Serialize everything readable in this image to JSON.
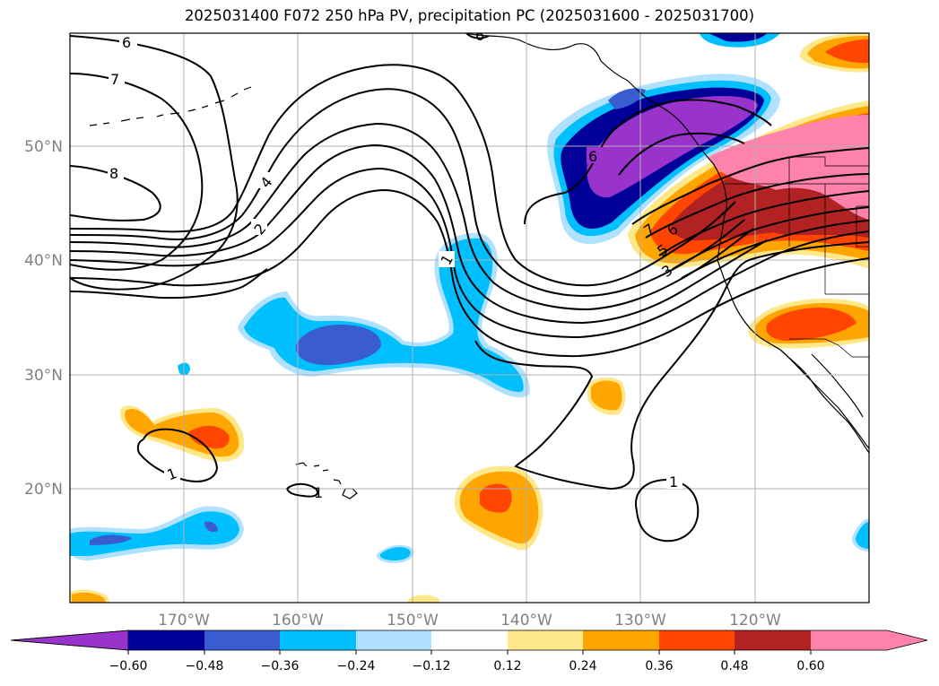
{
  "title": "2025031400 F072 250 hPa PV, precipitation PC (2025031600 - 2025031700)",
  "map": {
    "lon_range": [
      -180,
      -110
    ],
    "lat_range": [
      10,
      60
    ],
    "lon_ticks": [
      "170°W",
      "160°W",
      "150°W",
      "140°W",
      "130°W",
      "120°W"
    ],
    "lat_ticks": [
      "20°N",
      "30°N",
      "40°N",
      "50°N"
    ],
    "gridlines": true,
    "pv_contour_labels": [
      "6",
      "7",
      "8",
      "4",
      "2",
      "1",
      "1",
      "1",
      "1",
      "6",
      "7",
      "6",
      "5",
      "3",
      "6"
    ]
  },
  "colorbar": {
    "tick_labels": [
      "−0.60",
      "−0.48",
      "−0.36",
      "−0.24",
      "−0.12",
      "0.12",
      "0.24",
      "0.36",
      "0.48",
      "0.60"
    ],
    "colors": [
      "#9933cc",
      "#000099",
      "#3a5cd1",
      "#00bfff",
      "#b0e2ff",
      "#ffffff",
      "#ffe88a",
      "#ffa500",
      "#ff4500",
      "#b22222",
      "#ff82ab"
    ],
    "extend": "both"
  }
}
